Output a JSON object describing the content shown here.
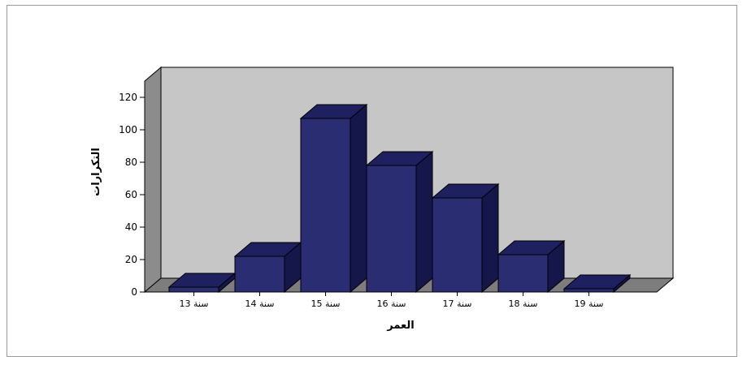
{
  "chart_data": {
    "type": "bar",
    "style": "3d",
    "categories": [
      "13 سنة",
      "14 سنة",
      "15 سنة",
      "16 سنة",
      "17 سنة",
      "18 سنة",
      "19 سنة"
    ],
    "values": [
      3,
      22,
      107,
      78,
      58,
      23,
      2
    ],
    "xlabel": "العمر",
    "ylabel": "التكرارات",
    "ylim": [
      0,
      130
    ],
    "yticks": [
      0,
      20,
      40,
      60,
      80,
      100,
      120
    ],
    "grid": false,
    "legend": "none",
    "colors": {
      "bar_front": "#2b2d73",
      "bar_top": "#1e2060",
      "bar_side": "#15174a",
      "back_wall": "#c6c6c6",
      "side_wall": "#8c8c8c",
      "floor": "#7d7d7d",
      "outline": "#000000"
    }
  }
}
